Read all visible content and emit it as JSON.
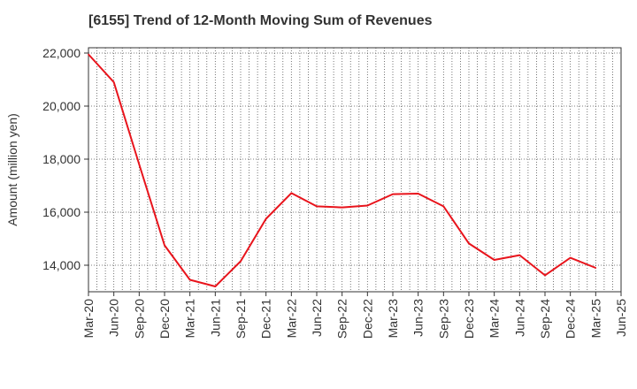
{
  "chart_data": {
    "type": "line",
    "title": "[6155]  Trend of 12-Month Moving Sum of Revenues",
    "xlabel": "",
    "ylabel": "Amount (million yen)",
    "ylim": [
      13000,
      22200
    ],
    "yticks": [
      14000,
      16000,
      18000,
      20000,
      22000
    ],
    "ytick_labels": [
      "14,000",
      "16,000",
      "18,000",
      "20,000",
      "22,000"
    ],
    "x_tick_labels": [
      "Mar-20",
      "Jun-20",
      "Sep-20",
      "Dec-20",
      "Mar-21",
      "Jun-21",
      "Sep-21",
      "Dec-21",
      "Mar-22",
      "Jun-22",
      "Sep-22",
      "Dec-22",
      "Mar-23",
      "Jun-23",
      "Sep-23",
      "Dec-23",
      "Mar-24",
      "Jun-24",
      "Sep-24",
      "Dec-24",
      "Mar-25",
      "Jun-25"
    ],
    "grid": true,
    "line_color": "#e8141c",
    "series": [
      {
        "x": [
          "Mar-20",
          "Jun-20",
          "Sep-20",
          "Dec-20",
          "Mar-21",
          "Jun-21",
          "Sep-21",
          "Dec-21",
          "Mar-22",
          "Jun-22",
          "Sep-22",
          "Dec-22",
          "Mar-23",
          "Jun-23",
          "Sep-23",
          "Dec-23",
          "Mar-24",
          "Jun-24",
          "Sep-24",
          "Dec-24",
          "Mar-25"
        ],
        "values": [
          21950,
          20900,
          17800,
          14750,
          13450,
          13200,
          14150,
          15750,
          16720,
          16220,
          16180,
          16250,
          16680,
          16700,
          16220,
          14820,
          14200,
          14380,
          13620,
          14280,
          13900
        ]
      }
    ]
  }
}
